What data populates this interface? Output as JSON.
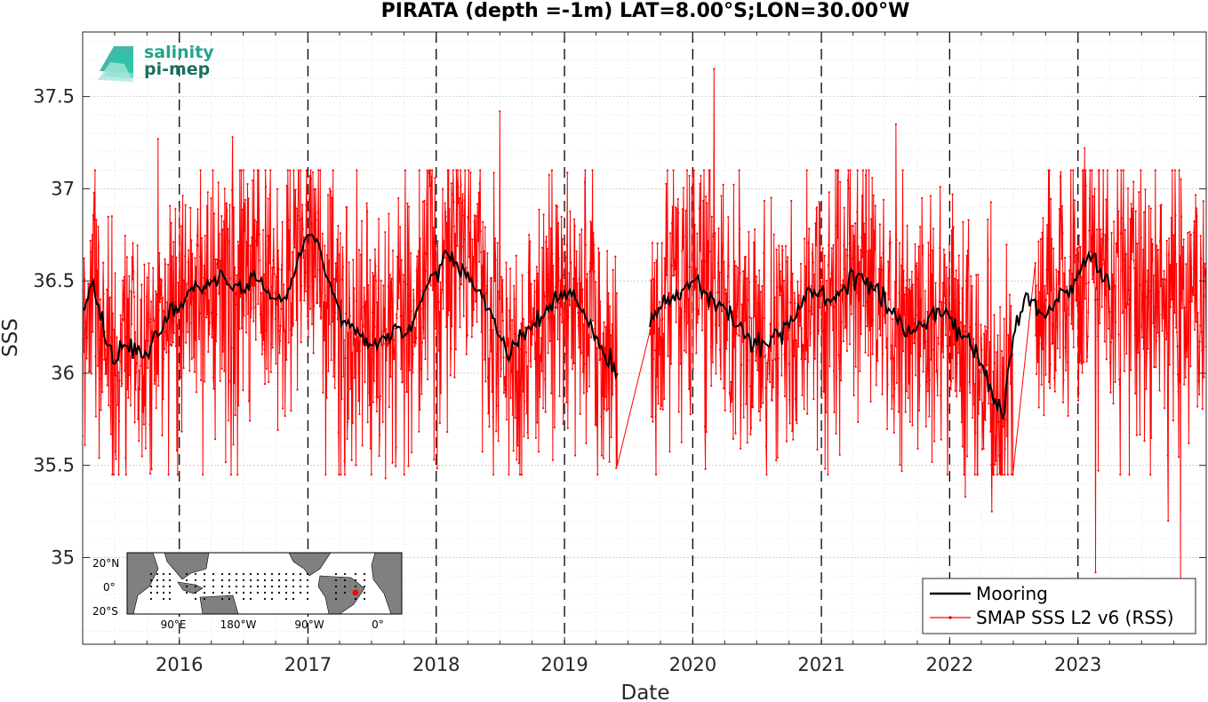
{
  "chart_data": {
    "type": "line",
    "title": "PIRATA (depth =-1m) LAT=8.00°S;LON=30.00°W",
    "xlabel": "Date",
    "ylabel": "SSS",
    "xlim": [
      "2015-04-01",
      "2024-01-01"
    ],
    "ylim": [
      34.53,
      37.85
    ],
    "yticks": [
      35,
      35.5,
      36,
      36.5,
      37,
      37.5
    ],
    "ytick_labels": [
      "35",
      "35.5",
      "36",
      "36.5",
      "37",
      "37.5"
    ],
    "xticks": [
      "2016-01-01",
      "2017-01-01",
      "2018-01-01",
      "2019-01-01",
      "2020-01-01",
      "2021-01-01",
      "2022-01-01",
      "2023-01-01"
    ],
    "xtick_labels": [
      "2016",
      "2017",
      "2018",
      "2019",
      "2020",
      "2021",
      "2022",
      "2023"
    ],
    "grid": true,
    "year_boundaries_dashed": true,
    "legend_position": "bottom-right",
    "series": [
      {
        "name": "Mooring",
        "color": "#000000",
        "style": "line",
        "points": [
          [
            "2015-04-01",
            36.35
          ],
          [
            "2015-05-01",
            36.5
          ],
          [
            "2015-06-01",
            36.2
          ],
          [
            "2015-07-01",
            36.05
          ],
          [
            "2015-08-01",
            36.15
          ],
          [
            "2015-09-01",
            36.1
          ],
          [
            "2015-10-01",
            36.1
          ],
          [
            "2015-11-01",
            36.2
          ],
          [
            "2015-12-01",
            36.3
          ],
          [
            "2016-01-01",
            36.35
          ],
          [
            "2016-02-01",
            36.45
          ],
          [
            "2016-03-01",
            36.45
          ],
          [
            "2016-04-01",
            36.5
          ],
          [
            "2016-05-01",
            36.55
          ],
          [
            "2016-06-01",
            36.45
          ],
          [
            "2016-07-01",
            36.45
          ],
          [
            "2016-08-01",
            36.55
          ],
          [
            "2016-09-01",
            36.45
          ],
          [
            "2016-10-01",
            36.4
          ],
          [
            "2016-11-01",
            36.4
          ],
          [
            "2016-12-01",
            36.6
          ],
          [
            "2017-01-01",
            36.75
          ],
          [
            "2017-02-01",
            36.7
          ],
          [
            "2017-03-01",
            36.5
          ],
          [
            "2017-04-01",
            36.35
          ],
          [
            "2017-05-01",
            36.25
          ],
          [
            "2017-06-01",
            36.2
          ],
          [
            "2017-07-01",
            36.15
          ],
          [
            "2017-08-01",
            36.2
          ],
          [
            "2017-09-01",
            36.25
          ],
          [
            "2017-10-01",
            36.2
          ],
          [
            "2017-11-01",
            36.3
          ],
          [
            "2017-12-01",
            36.45
          ],
          [
            "2018-01-01",
            36.55
          ],
          [
            "2018-02-01",
            36.65
          ],
          [
            "2018-03-01",
            36.6
          ],
          [
            "2018-04-01",
            36.55
          ],
          [
            "2018-05-01",
            36.45
          ],
          [
            "2018-06-01",
            36.35
          ],
          [
            "2018-07-01",
            36.2
          ],
          [
            "2018-08-01",
            36.1
          ],
          [
            "2018-09-01",
            36.2
          ],
          [
            "2018-10-01",
            36.25
          ],
          [
            "2018-11-01",
            36.3
          ],
          [
            "2018-12-01",
            36.4
          ],
          [
            "2019-01-01",
            36.45
          ],
          [
            "2019-02-01",
            36.4
          ],
          [
            "2019-03-01",
            36.3
          ],
          [
            "2019-04-01",
            36.2
          ],
          [
            "2019-05-01",
            36.05
          ],
          [
            "2019-06-01",
            36.0
          ],
          [
            "2019-09-01",
            36.25
          ],
          [
            "2019-10-01",
            36.35
          ],
          [
            "2019-11-01",
            36.4
          ],
          [
            "2019-12-01",
            36.45
          ],
          [
            "2020-01-01",
            36.5
          ],
          [
            "2020-02-01",
            36.45
          ],
          [
            "2020-03-01",
            36.4
          ],
          [
            "2020-04-01",
            36.35
          ],
          [
            "2020-05-01",
            36.25
          ],
          [
            "2020-06-01",
            36.2
          ],
          [
            "2020-07-01",
            36.15
          ],
          [
            "2020-08-01",
            36.15
          ],
          [
            "2020-09-01",
            36.2
          ],
          [
            "2020-10-01",
            36.25
          ],
          [
            "2020-11-01",
            36.35
          ],
          [
            "2020-12-01",
            36.45
          ],
          [
            "2021-01-01",
            36.45
          ],
          [
            "2021-02-01",
            36.4
          ],
          [
            "2021-03-01",
            36.45
          ],
          [
            "2021-04-01",
            36.55
          ],
          [
            "2021-05-01",
            36.5
          ],
          [
            "2021-06-01",
            36.45
          ],
          [
            "2021-07-01",
            36.4
          ],
          [
            "2021-08-01",
            36.3
          ],
          [
            "2021-09-01",
            36.2
          ],
          [
            "2021-10-01",
            36.25
          ],
          [
            "2021-11-01",
            36.3
          ],
          [
            "2021-12-01",
            36.35
          ],
          [
            "2022-01-01",
            36.3
          ],
          [
            "2022-02-01",
            36.2
          ],
          [
            "2022-03-01",
            36.15
          ],
          [
            "2022-04-01",
            36.05
          ],
          [
            "2022-05-01",
            35.9
          ],
          [
            "2022-06-01",
            35.75
          ],
          [
            "2022-07-01",
            36.2
          ],
          [
            "2022-08-01",
            36.4
          ],
          [
            "2022-09-01",
            36.4
          ],
          [
            "2022-10-01",
            36.3
          ],
          [
            "2022-11-01",
            36.4
          ],
          [
            "2022-12-01",
            36.45
          ],
          [
            "2023-01-01",
            36.55
          ],
          [
            "2023-02-01",
            36.65
          ],
          [
            "2023-03-01",
            36.55
          ],
          [
            "2023-04-01",
            36.45
          ]
        ]
      },
      {
        "name": "SMAP SSS L2 v6 (RSS)",
        "color": "#ff0000",
        "style": "line-marker",
        "notable_points": [
          [
            "2020-03-01",
            37.65
          ],
          [
            "2018-07-01",
            37.42
          ],
          [
            "2021-08-01",
            37.35
          ],
          [
            "2023-01-20",
            37.22
          ],
          [
            "2016-06-01",
            37.28
          ],
          [
            "2015-11-01",
            37.27
          ],
          [
            "2023-10-20",
            34.88
          ],
          [
            "2023-02-20",
            34.92
          ],
          [
            "2022-05-01",
            35.25
          ],
          [
            "2023-09-15",
            35.2
          ],
          [
            "2022-02-15",
            35.33
          ],
          [
            "2016-06-15",
            35.45
          ],
          [
            "2017-08-10",
            35.43
          ],
          [
            "2019-06-05",
            35.5
          ]
        ],
        "mean": 36.25,
        "spread": 0.38,
        "gaps": [
          [
            "2019-06-01",
            "2019-09-01"
          ],
          [
            "2022-07-01",
            "2022-09-01"
          ]
        ]
      }
    ]
  },
  "logo": {
    "line1": "salinity",
    "line2": "pi-mep"
  },
  "inset_map": {
    "lat_labels": [
      "20°N",
      "0°",
      "20°S"
    ],
    "lon_labels": [
      "90°E",
      "180°W",
      "90°W",
      "0°"
    ],
    "marker_color": "#ff0000"
  }
}
